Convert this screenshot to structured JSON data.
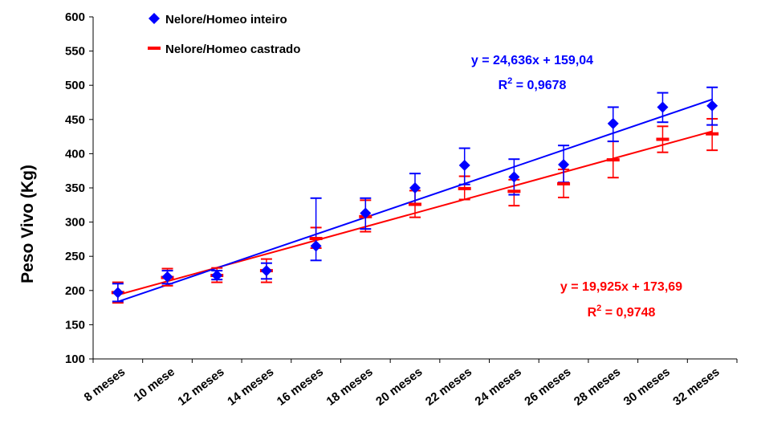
{
  "chart_data": {
    "type": "scatter",
    "ylabel": "Peso Vivo  (Kg)",
    "ylim": [
      100,
      600
    ],
    "yticks": [
      100,
      150,
      200,
      250,
      300,
      350,
      400,
      450,
      500,
      550,
      600
    ],
    "categories": [
      "8 meses",
      "10 mese",
      "12 meses",
      "14 meses",
      "16 meses",
      "18 meses",
      "20 meses",
      "22 meses",
      "24 meses",
      "26 meses",
      "28 meses",
      "30 meses",
      "32 meses"
    ],
    "legend_position": "top-left",
    "grid": false,
    "series": [
      {
        "name": "Nelore/Homeo inteiro",
        "color": "#0000ff",
        "marker": "diamond",
        "values": [
          197,
          220,
          222,
          229,
          265,
          313,
          350,
          383,
          366,
          384,
          444,
          468,
          470
        ],
        "error_low": [
          184,
          210,
          216,
          217,
          244,
          290,
          325,
          355,
          340,
          358,
          418,
          446,
          442
        ],
        "error_high": [
          210,
          229,
          229,
          240,
          335,
          335,
          371,
          408,
          392,
          412,
          468,
          489,
          497
        ],
        "trendline": {
          "slope": 24.636,
          "intercept": 159.04
        },
        "equation": "y = 24,636x + 159,04",
        "r2_prefix": "R",
        "r2_exp": "2",
        "r2_suffix": " = 0,9678"
      },
      {
        "name": "Nelore/Homeo castrado",
        "color": "#ff0000",
        "marker": "dash",
        "values": [
          197,
          219,
          222,
          229,
          276,
          308,
          326,
          349,
          345,
          356,
          391,
          421,
          429
        ],
        "error_low": [
          182,
          207,
          212,
          212,
          262,
          286,
          307,
          333,
          324,
          336,
          365,
          402,
          405
        ],
        "error_high": [
          212,
          232,
          233,
          246,
          292,
          332,
          346,
          367,
          362,
          377,
          418,
          440,
          451
        ],
        "trendline": {
          "slope": 19.925,
          "intercept": 173.69
        },
        "equation": "y = 19,925x + 173,69",
        "r2_prefix": "R",
        "r2_exp": "2",
        "r2_suffix": " = 0,9748"
      }
    ]
  }
}
